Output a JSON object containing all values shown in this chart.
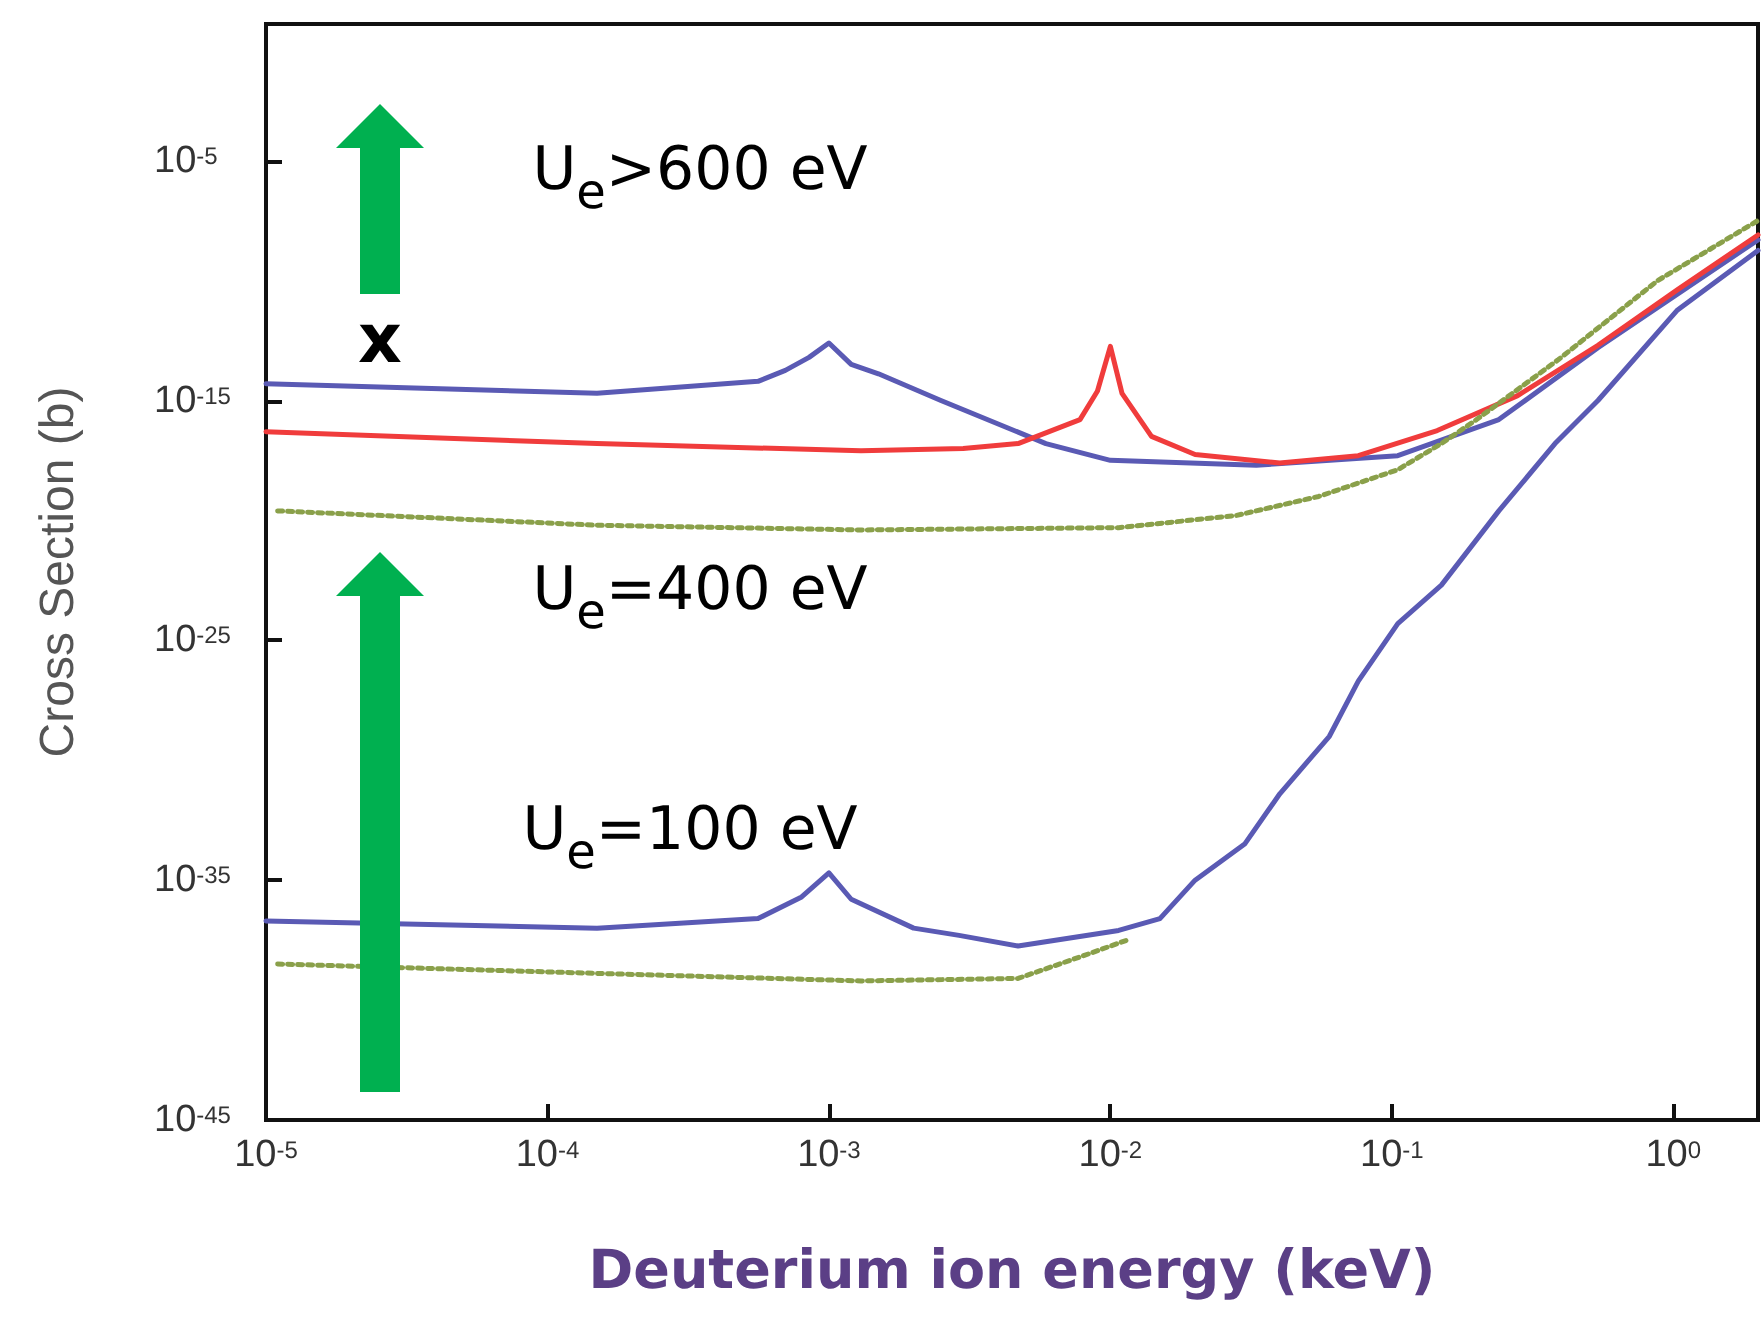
{
  "chart_data": {
    "type": "line",
    "xlabel": "Deuterium ion energy (keV)",
    "ylabel": "Cross Section (b)",
    "log": "xy",
    "grid": false,
    "marker": "none",
    "xlim": [
      1e-05,
      2
    ],
    "ylim": [
      1e-45,
      5
    ],
    "xticks": [
      {
        "value": 1e-05,
        "label": "10$^{-5}$"
      },
      {
        "value": 0.0001,
        "label": "10$^{-4}$"
      },
      {
        "value": 0.001,
        "label": "10$^{-3}$"
      },
      {
        "value": 0.01,
        "label": "10$^{-2}$"
      },
      {
        "value": 0.1,
        "label": "10$^{-1}$"
      },
      {
        "value": 1,
        "label": "10$^{0}$"
      }
    ],
    "yticks": [
      {
        "value": 1e-45,
        "label": "10$^{-45}$"
      },
      {
        "value": 1e-35,
        "label": "10$^{-35}$"
      },
      {
        "value": 1e-25,
        "label": "10$^{-25}$"
      },
      {
        "value": 1e-15,
        "label": "10$^{-15}$"
      },
      {
        "value": 1e-05,
        "label": "10$^{-5}$"
      }
    ],
    "series": [
      {
        "color": "#5a5ab4",
        "line_style": "solid",
        "x": [
          1e-05,
          0.00015,
          0.00056,
          0.0007,
          0.00085,
          0.001,
          0.0012,
          0.0015,
          0.0025,
          0.0059,
          0.01,
          0.033,
          0.105,
          0.24,
          0.54,
          2
        ],
        "values": [
          5e-15,
          2e-15,
          6.3e-15,
          1.8e-14,
          6.3e-14,
          2.5e-13,
          3.2e-14,
          1.3e-14,
          1e-15,
          1.6e-17,
          3.2e-18,
          2e-18,
          5e-18,
          1.6e-16,
          1.6e-13,
          5e-09
        ]
      },
      {
        "color": "#f03c3c",
        "line_style": "solid",
        "x": [
          1e-05,
          0.00015,
          0.0013,
          0.003,
          0.0047,
          0.0078,
          0.009,
          0.01,
          0.011,
          0.014,
          0.02,
          0.04,
          0.076,
          0.145,
          0.28,
          0.54,
          1.03,
          2
        ],
        "values": [
          5e-17,
          1.6e-17,
          8e-18,
          1e-17,
          1.6e-17,
          1.6e-16,
          2.5e-15,
          1.8e-13,
          2e-15,
          3.2e-17,
          5.6e-18,
          2.5e-18,
          5e-18,
          5.6e-17,
          1.6e-15,
          2e-13,
          4e-11,
          8e-09
        ]
      },
      {
        "color": "#8aa04a",
        "line_style": "dotted",
        "x": [
          1.1e-05,
          0.00015,
          0.0013,
          0.0107,
          0.028,
          0.055,
          0.105,
          0.15,
          0.2,
          0.39,
          0.88,
          2
        ],
        "values": [
          2.5e-20,
          6.3e-21,
          4e-21,
          5e-21,
          1.6e-20,
          1e-19,
          1.3e-18,
          1.6e-17,
          1.6e-16,
          5e-14,
          1e-10,
          3.2e-08
        ]
      },
      {
        "color": "#5a5ab4",
        "line_style": "solid",
        "x": [
          1e-05,
          0.00015,
          0.00056,
          0.0008,
          0.001,
          0.0012,
          0.002,
          0.0029,
          0.0047,
          0.0107,
          0.015,
          0.02,
          0.03,
          0.04,
          0.06,
          0.076,
          0.105,
          0.15,
          0.24,
          0.38,
          0.54,
          1.03,
          2
        ],
        "values": [
          2e-37,
          1e-37,
          2.5e-37,
          2e-36,
          2e-35,
          1.6e-36,
          1e-37,
          5e-38,
          1.8e-38,
          8e-38,
          2.5e-37,
          1e-35,
          3.2e-34,
          4e-32,
          1e-29,
          2e-27,
          5e-25,
          2e-23,
          2.5e-20,
          1.6e-17,
          1e-15,
          5.6e-12,
          1.8e-09
        ]
      },
      {
        "color": "#8aa04a",
        "line_style": "dotted",
        "x": [
          1.1e-05,
          0.00015,
          0.0013,
          0.0047,
          0.0078,
          0.0115
        ],
        "values": [
          3.2e-39,
          1.3e-39,
          6.3e-40,
          8e-40,
          6.3e-39,
          3.2e-38
        ]
      }
    ],
    "annotations": [
      "U$_{e}$>600 eV",
      "U$_{e}$=400 eV",
      "U$_{e}$=100 eV",
      "x"
    ]
  }
}
